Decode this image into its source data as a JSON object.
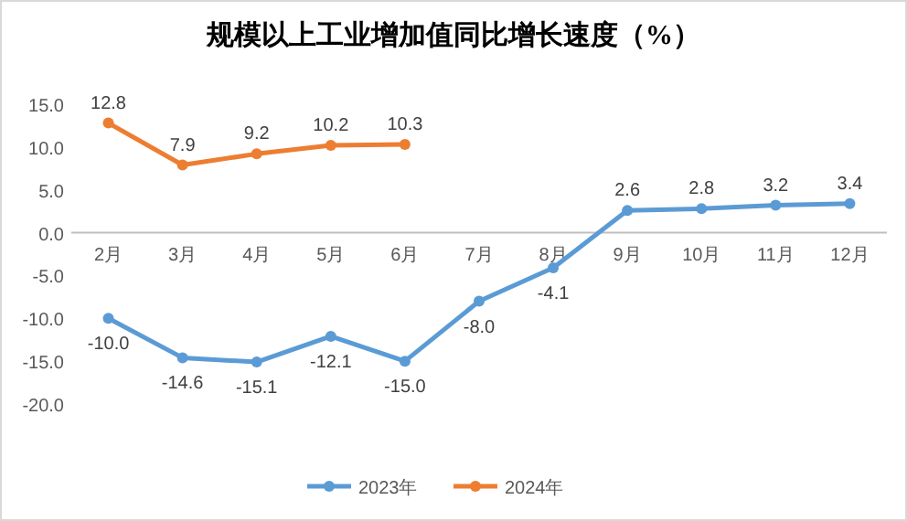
{
  "chart_data": {
    "type": "line",
    "title": "规模以上工业增加值同比增长速度（%）",
    "categories": [
      "2月",
      "3月",
      "4月",
      "5月",
      "6月",
      "7月",
      "8月",
      "9月",
      "10月",
      "11月",
      "12月"
    ],
    "series": [
      {
        "name": "2023年",
        "color": "#5b9bd5",
        "values": [
          -10.0,
          -14.6,
          -15.1,
          -12.1,
          -15.0,
          -8.0,
          -4.1,
          2.6,
          2.8,
          3.2,
          3.4
        ],
        "value_labels": [
          "-10.0",
          "-14.6",
          "-15.1",
          "-12.1",
          "-15.0",
          "-8.0",
          "-4.1",
          "2.6",
          "2.8",
          "3.2",
          "3.4"
        ]
      },
      {
        "name": "2024年",
        "color": "#ed7d31",
        "values": [
          12.8,
          7.9,
          9.2,
          10.2,
          10.3,
          null,
          null,
          null,
          null,
          null,
          null
        ],
        "value_labels": [
          "12.8",
          "7.9",
          "9.2",
          "10.2",
          "10.3",
          null,
          null,
          null,
          null,
          null,
          null
        ]
      }
    ],
    "ylim": [
      -20,
      15
    ],
    "yticks": [
      {
        "value": -20,
        "label": "-20.0"
      },
      {
        "value": -15,
        "label": "-15.0"
      },
      {
        "value": -10,
        "label": "-10.0"
      },
      {
        "value": -5,
        "label": "-5.0"
      },
      {
        "value": 0,
        "label": "0.0"
      },
      {
        "value": 5,
        "label": "5.0"
      },
      {
        "value": 10,
        "label": "10.0"
      },
      {
        "value": 15,
        "label": "15.0"
      }
    ],
    "marker": "circle",
    "legend": "bottom",
    "grid": false
  }
}
